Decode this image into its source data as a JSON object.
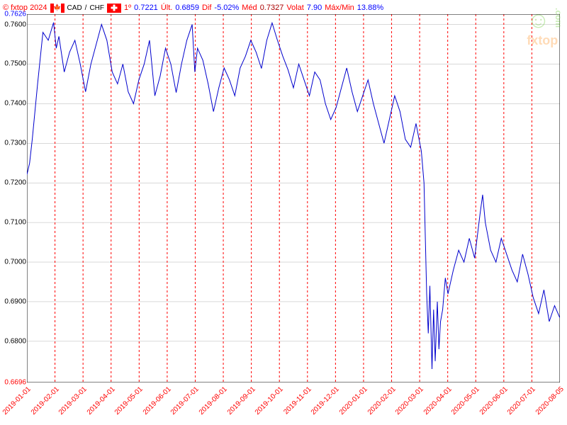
{
  "header": {
    "copyright": "© fxtop 2024",
    "pair_base": "CAD",
    "pair_sep": "/",
    "pair_quote": "CHF",
    "stats": {
      "first_lbl": "1º",
      "first_val": "0.7221",
      "last_lbl": "Últ.",
      "last_val": "0.6859",
      "dif_lbl": "Dif",
      "dif_val": "-5.02%",
      "med_lbl": "Méd",
      "med_val": "0.7327",
      "volat_lbl": "Volat",
      "volat_val": "7.90",
      "maxmin_lbl": "Máx/Min",
      "maxmin_val": "13.88%"
    }
  },
  "chart": {
    "type": "line",
    "line_color": "#0000cd",
    "line_width": 1,
    "grid_color": "#ff0000",
    "grid_dash": "3,3",
    "background_color": "#ffffff",
    "y_top": 0.7626,
    "y_bot": 0.6696,
    "y_ticks": [
      0.76,
      0.75,
      0.74,
      0.73,
      0.72,
      0.71,
      0.7,
      0.69,
      0.68
    ],
    "y_top_label": "0.7626",
    "y_bot_label": "0.6696",
    "x_labels": [
      "2019-01-01",
      "2019-02-01",
      "2019-03-01",
      "2019-04-01",
      "2019-05-01",
      "2019-06-01",
      "2019-07-01",
      "2019-08-01",
      "2019-09-01",
      "2019-10-01",
      "2019-11-01",
      "2019-12-01",
      "2020-01-01",
      "2020-02-01",
      "2020-03-01",
      "2020-04-01",
      "2020-05-01",
      "2020-06-01",
      "2020-07-01",
      "2020-08-05"
    ],
    "series": [
      [
        0,
        0.7221
      ],
      [
        0.5,
        0.725
      ],
      [
        1,
        0.731
      ],
      [
        1.5,
        0.738
      ],
      [
        2,
        0.745
      ],
      [
        3,
        0.758
      ],
      [
        4,
        0.756
      ],
      [
        5,
        0.7605
      ],
      [
        5.5,
        0.754
      ],
      [
        6,
        0.757
      ],
      [
        7,
        0.748
      ],
      [
        8,
        0.753
      ],
      [
        9,
        0.756
      ],
      [
        10,
        0.75
      ],
      [
        11,
        0.743
      ],
      [
        12,
        0.75
      ],
      [
        13,
        0.755
      ],
      [
        14,
        0.76
      ],
      [
        15,
        0.756
      ],
      [
        16,
        0.748
      ],
      [
        17,
        0.745
      ],
      [
        18,
        0.75
      ],
      [
        19,
        0.743
      ],
      [
        20,
        0.74
      ],
      [
        21,
        0.746
      ],
      [
        22,
        0.75
      ],
      [
        23,
        0.756
      ],
      [
        24,
        0.742
      ],
      [
        25,
        0.747
      ],
      [
        26,
        0.754
      ],
      [
        27,
        0.75
      ],
      [
        28,
        0.7428
      ],
      [
        29,
        0.75
      ],
      [
        30,
        0.756
      ],
      [
        31,
        0.76
      ],
      [
        31.5,
        0.748
      ],
      [
        32,
        0.754
      ],
      [
        33,
        0.751
      ],
      [
        34,
        0.745
      ],
      [
        35,
        0.738
      ],
      [
        36,
        0.744
      ],
      [
        37,
        0.749
      ],
      [
        38,
        0.746
      ],
      [
        39,
        0.742
      ],
      [
        40,
        0.749
      ],
      [
        41,
        0.752
      ],
      [
        42,
        0.756
      ],
      [
        43,
        0.753
      ],
      [
        44,
        0.7489
      ],
      [
        45,
        0.756
      ],
      [
        46,
        0.7604
      ],
      [
        47,
        0.756
      ],
      [
        48,
        0.752
      ],
      [
        49,
        0.7485
      ],
      [
        50,
        0.744
      ],
      [
        51,
        0.75
      ],
      [
        52,
        0.746
      ],
      [
        53,
        0.742
      ],
      [
        54,
        0.748
      ],
      [
        55,
        0.746
      ],
      [
        56,
        0.74
      ],
      [
        57,
        0.736
      ],
      [
        58,
        0.739
      ],
      [
        59,
        0.744
      ],
      [
        60,
        0.749
      ],
      [
        61,
        0.743
      ],
      [
        62,
        0.738
      ],
      [
        63,
        0.742
      ],
      [
        64,
        0.746
      ],
      [
        65,
        0.74
      ],
      [
        66,
        0.735
      ],
      [
        67,
        0.73
      ],
      [
        68,
        0.736
      ],
      [
        69,
        0.742
      ],
      [
        70,
        0.738
      ],
      [
        71,
        0.731
      ],
      [
        72,
        0.729
      ],
      [
        73,
        0.735
      ],
      [
        74,
        0.728
      ],
      [
        74.5,
        0.72
      ],
      [
        75,
        0.692
      ],
      [
        75.3,
        0.682
      ],
      [
        75.6,
        0.694
      ],
      [
        76,
        0.673
      ],
      [
        76.3,
        0.688
      ],
      [
        76.6,
        0.675
      ],
      [
        77,
        0.69
      ],
      [
        77.3,
        0.678
      ],
      [
        77.6,
        0.685
      ],
      [
        78,
        0.688
      ],
      [
        78.5,
        0.696
      ],
      [
        79,
        0.692
      ],
      [
        80,
        0.698
      ],
      [
        81,
        0.703
      ],
      [
        82,
        0.7
      ],
      [
        83,
        0.706
      ],
      [
        84,
        0.701
      ],
      [
        85,
        0.712
      ],
      [
        85.5,
        0.717
      ],
      [
        86,
        0.71
      ],
      [
        87,
        0.703
      ],
      [
        88,
        0.7
      ],
      [
        89,
        0.706
      ],
      [
        90,
        0.702
      ],
      [
        91,
        0.698
      ],
      [
        92,
        0.695
      ],
      [
        93,
        0.702
      ],
      [
        94,
        0.697
      ],
      [
        95,
        0.691
      ],
      [
        96,
        0.687
      ],
      [
        97,
        0.693
      ],
      [
        98,
        0.685
      ],
      [
        99,
        0.689
      ],
      [
        100,
        0.6859
      ]
    ],
    "x_max": 100
  },
  "watermark": {
    "face": "☺",
    "text": "fxtop",
    "com": ".com"
  }
}
